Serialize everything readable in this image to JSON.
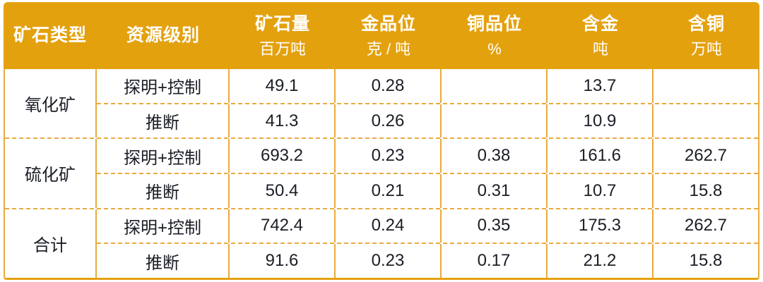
{
  "colors": {
    "header_bg": "#E4A10E",
    "grid_line": "#EAAA3F",
    "body_text": "#1B1E26",
    "header_text": "#FFFFFF"
  },
  "table": {
    "columns": [
      {
        "label": "矿石类型",
        "unit": ""
      },
      {
        "label": "资源级别",
        "unit": ""
      },
      {
        "label": "矿石量",
        "unit": "百万吨"
      },
      {
        "label": "金品位",
        "unit": "克 / 吨"
      },
      {
        "label": "铜品位",
        "unit": "%"
      },
      {
        "label": "含金",
        "unit": "吨"
      },
      {
        "label": "含铜",
        "unit": "万吨"
      }
    ],
    "groups": [
      {
        "type": "氧化矿",
        "rows": [
          {
            "level": "探明+控制",
            "values": [
              "49.1",
              "0.28",
              "",
              "13.7",
              ""
            ]
          },
          {
            "level": "推断",
            "values": [
              "41.3",
              "0.26",
              "",
              "10.9",
              ""
            ]
          }
        ]
      },
      {
        "type": "硫化矿",
        "rows": [
          {
            "level": "探明+控制",
            "values": [
              "693.2",
              "0.23",
              "0.38",
              "161.6",
              "262.7"
            ]
          },
          {
            "level": "推断",
            "values": [
              "50.4",
              "0.21",
              "0.31",
              "10.7",
              "15.8"
            ]
          }
        ]
      },
      {
        "type": "合计",
        "rows": [
          {
            "level": "探明+控制",
            "values": [
              "742.4",
              "0.24",
              "0.35",
              "175.3",
              "262.7"
            ]
          },
          {
            "level": "推断",
            "values": [
              "91.6",
              "0.23",
              "0.17",
              "21.2",
              "15.8"
            ]
          }
        ]
      }
    ]
  },
  "chart_data": {
    "type": "table",
    "columns": [
      "矿石类型",
      "资源级别",
      "矿石量 (百万吨)",
      "金品位 (克/吨)",
      "铜品位 (%)",
      "含金 (吨)",
      "含铜 (万吨)"
    ],
    "rows": [
      [
        "氧化矿",
        "探明+控制",
        49.1,
        0.28,
        null,
        13.7,
        null
      ],
      [
        "氧化矿",
        "推断",
        41.3,
        0.26,
        null,
        10.9,
        null
      ],
      [
        "硫化矿",
        "探明+控制",
        693.2,
        0.23,
        0.38,
        161.6,
        262.7
      ],
      [
        "硫化矿",
        "推断",
        50.4,
        0.21,
        0.31,
        10.7,
        15.8
      ],
      [
        "合计",
        "探明+控制",
        742.4,
        0.24,
        0.35,
        175.3,
        262.7
      ],
      [
        "合计",
        "推断",
        91.6,
        0.23,
        0.17,
        21.2,
        15.8
      ]
    ]
  }
}
